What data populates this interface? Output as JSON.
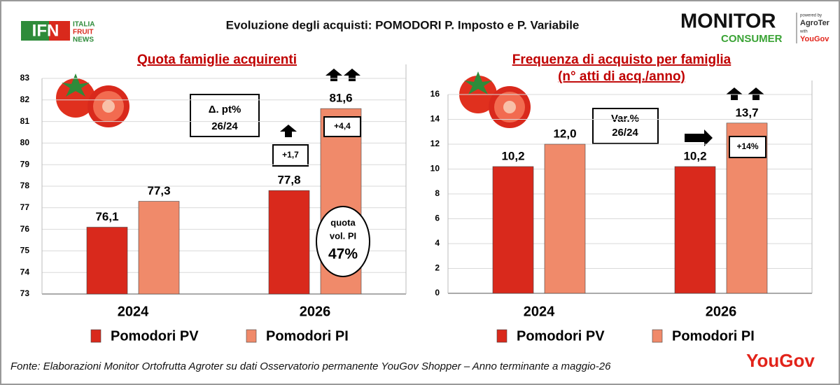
{
  "title": "Evoluzione degli acquisti: POMODORI P. Imposto e P. Variabile",
  "logo_left": {
    "mark": "IFN",
    "lines": [
      "ITALIA",
      "FRUIT",
      "NEWS"
    ]
  },
  "logo_right": {
    "top": "MONITOR",
    "bottom": "CONSUMER",
    "powered": "powered by",
    "brand": "AgroTer",
    "with": "with",
    "partner": "YouGov"
  },
  "source": "Fonte: Elaborazioni Monitor Ortofrutta Agroter su dati Osservatorio permanente YouGov Shopper  – Anno terminante a maggio-26",
  "footer_logo": "YouGov",
  "chart_data": [
    {
      "type": "bar",
      "title": "Quota famiglie acquirenti",
      "categories": [
        "2024",
        "2026"
      ],
      "series": [
        {
          "name": "Pomodori PV",
          "color": "#d9291c",
          "values": [
            76.1,
            77.8
          ],
          "value_labels": [
            "76,1",
            "77,8"
          ]
        },
        {
          "name": "Pomodori PI",
          "color": "#f08a6a",
          "values": [
            77.3,
            81.6
          ],
          "value_labels": [
            "77,3",
            "81,6"
          ]
        }
      ],
      "ylim": [
        73,
        83
      ],
      "yticks": [
        73,
        74,
        75,
        76,
        77,
        78,
        79,
        80,
        81,
        82,
        83
      ],
      "grid": true,
      "annotations": {
        "box": [
          "Δ. pt%",
          "26/24"
        ],
        "changes": [
          "+1,7",
          "+4,4"
        ],
        "note": [
          "quota",
          "vol. PI",
          "47%"
        ]
      }
    },
    {
      "type": "bar",
      "title": "Frequenza di acquisto per famiglia",
      "subtitle": "(n° atti di acq./anno)",
      "categories": [
        "2024",
        "2026"
      ],
      "series": [
        {
          "name": "Pomodori PV",
          "color": "#d9291c",
          "values": [
            10.2,
            10.2
          ],
          "value_labels": [
            "10,2",
            "10,2"
          ]
        },
        {
          "name": "Pomodori PI",
          "color": "#f08a6a",
          "values": [
            12.0,
            13.7
          ],
          "value_labels": [
            "12,0",
            "13,7"
          ]
        }
      ],
      "ylim": [
        0,
        16
      ],
      "yticks": [
        0,
        2,
        4,
        6,
        8,
        10,
        12,
        14,
        16
      ],
      "grid": true,
      "annotations": {
        "box": [
          "Var.%",
          "26/24"
        ],
        "changes": [
          "+14%"
        ]
      }
    }
  ]
}
